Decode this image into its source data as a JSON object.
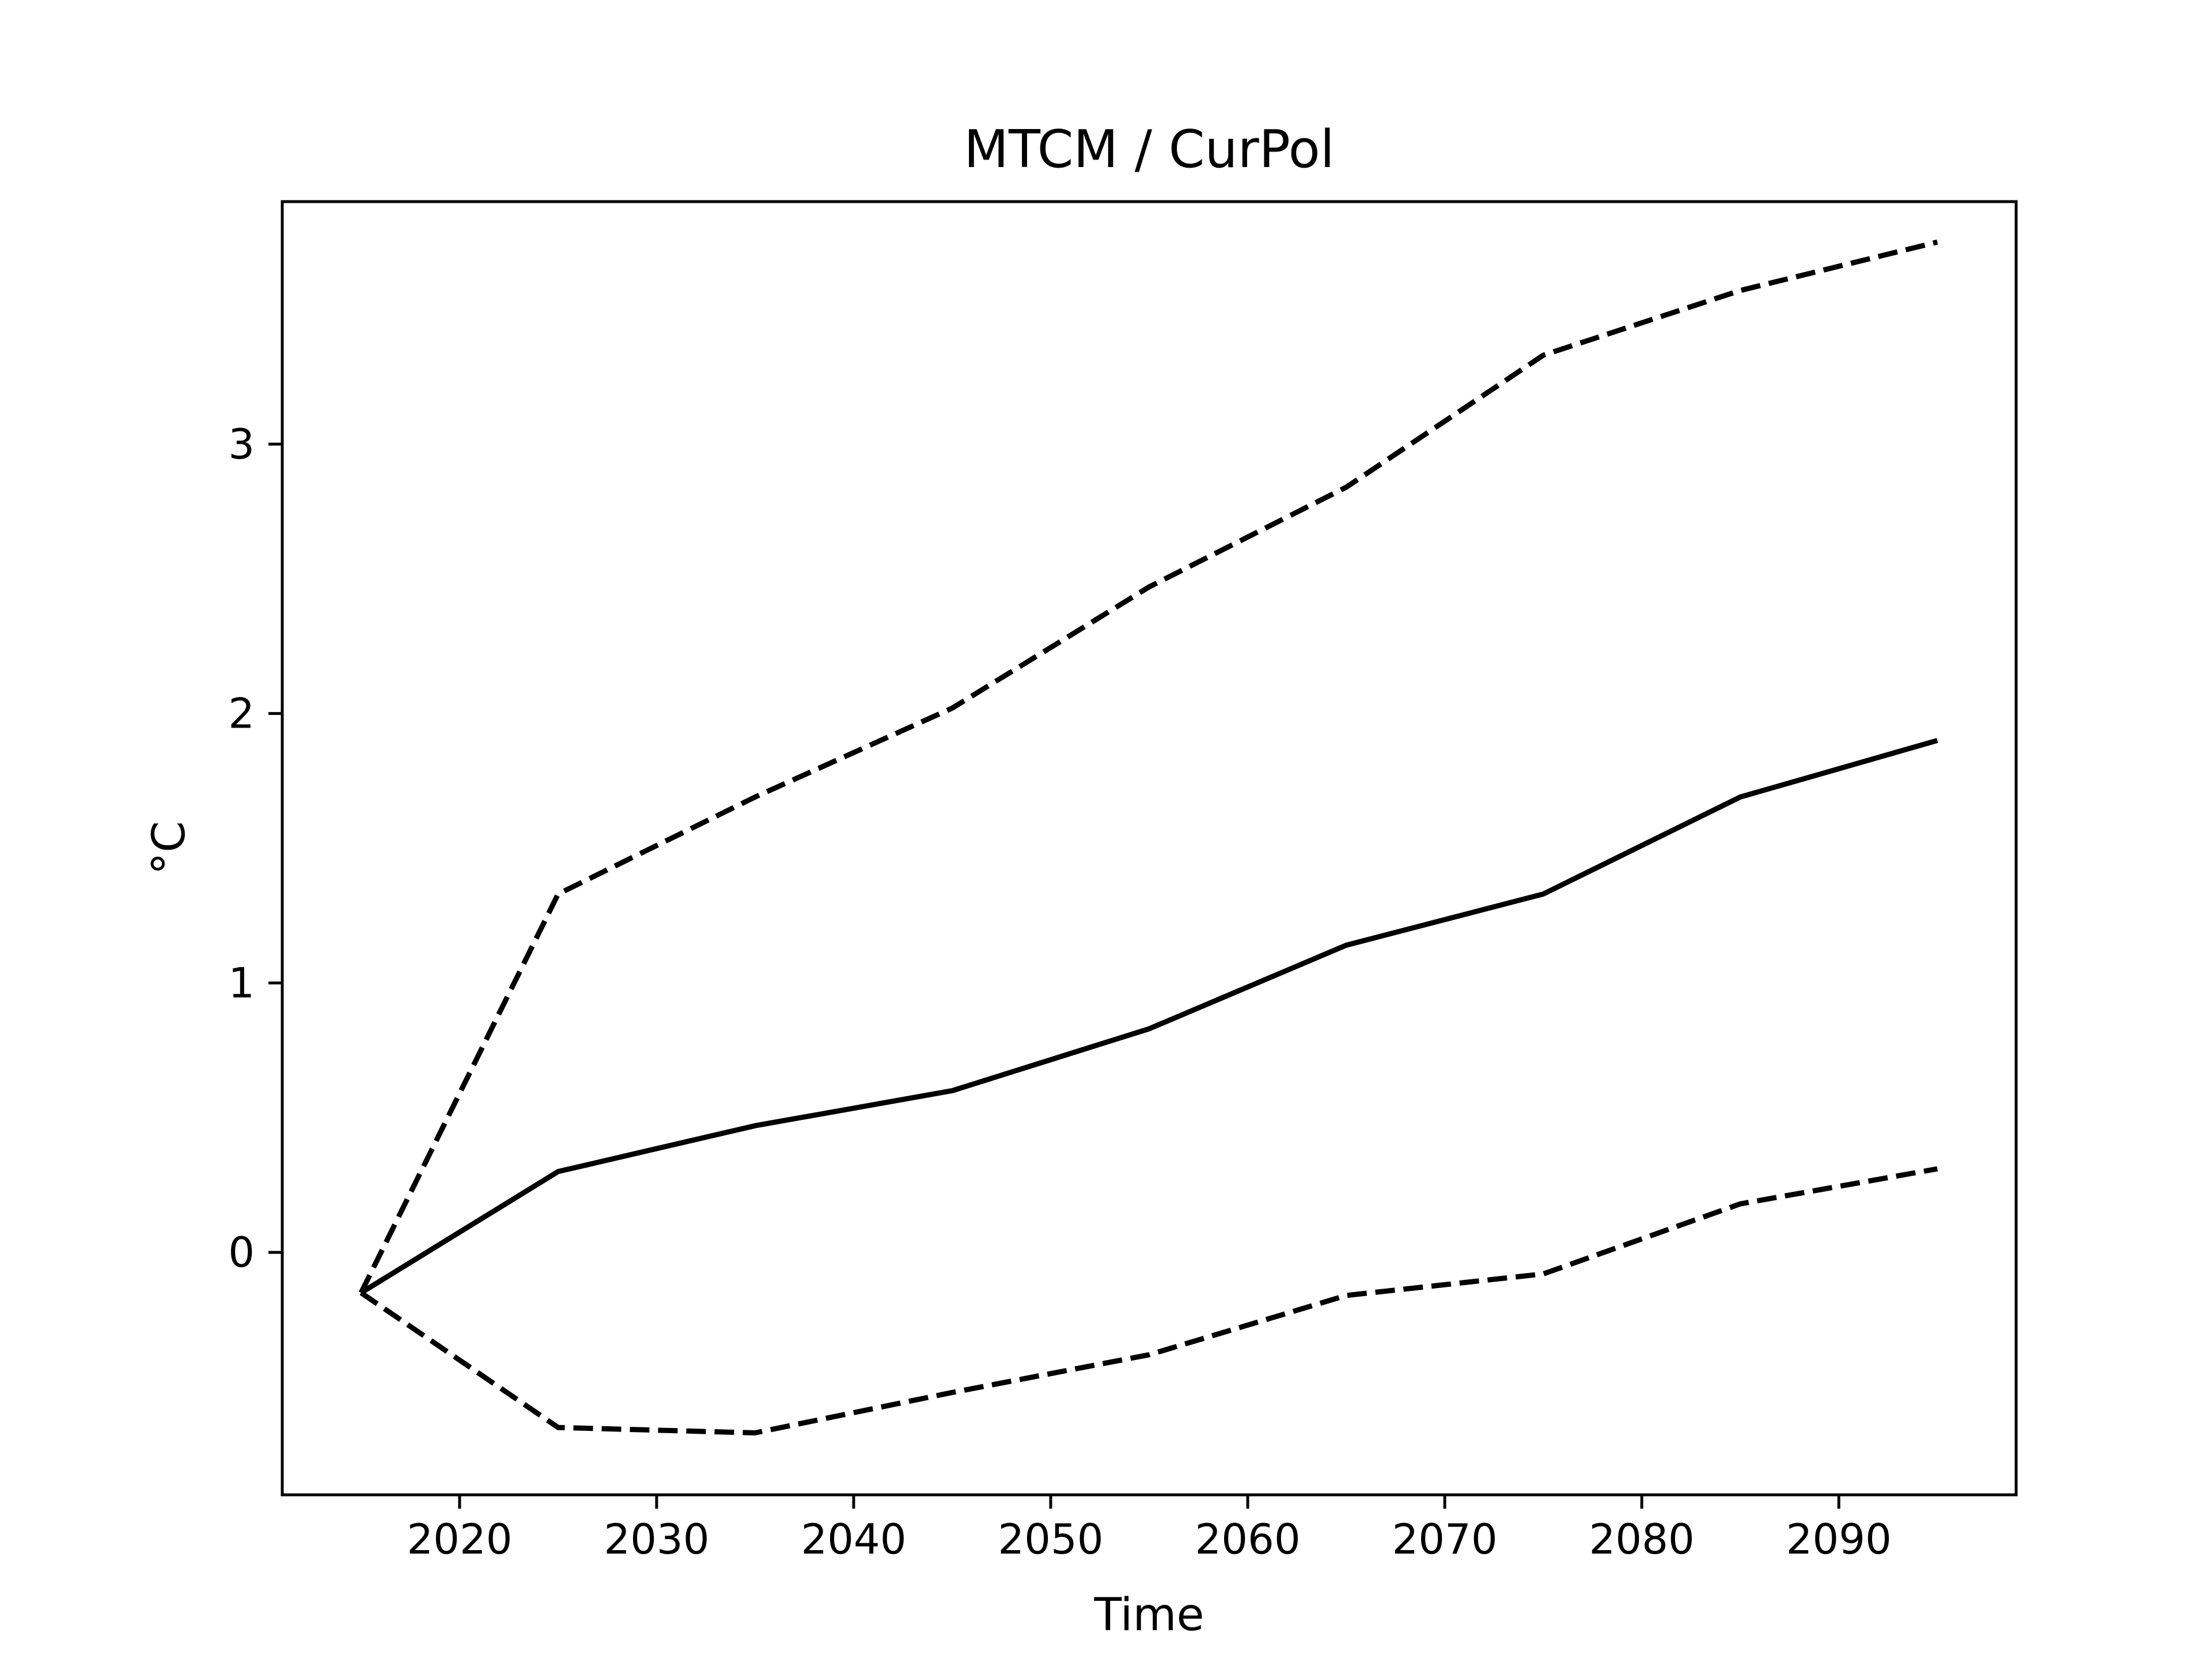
{
  "chart_data": {
    "type": "line",
    "title": "MTCM / CurPol",
    "xlabel": "Time",
    "ylabel": "°C",
    "xlim": [
      2011,
      2099
    ],
    "ylim": [
      -0.9,
      3.9
    ],
    "xticks": [
      2020,
      2030,
      2040,
      2050,
      2060,
      2070,
      2080,
      2090
    ],
    "yticks": [
      0,
      1,
      2,
      3
    ],
    "x": [
      2015,
      2025,
      2035,
      2045,
      2055,
      2065,
      2075,
      2085,
      2095
    ],
    "grid": false,
    "legend": "none",
    "line_color": "#000000",
    "series": [
      {
        "style": "solid",
        "values": [
          -0.15,
          0.3,
          0.47,
          0.6,
          0.83,
          1.14,
          1.33,
          1.69,
          1.9
        ]
      },
      {
        "style": "dashed",
        "values": [
          -0.15,
          1.33,
          1.69,
          2.02,
          2.47,
          2.84,
          3.33,
          3.57,
          3.75
        ]
      },
      {
        "style": "dashed",
        "values": [
          -0.15,
          -0.65,
          -0.67,
          -0.52,
          -0.38,
          -0.16,
          -0.08,
          0.18,
          0.31
        ]
      }
    ]
  }
}
